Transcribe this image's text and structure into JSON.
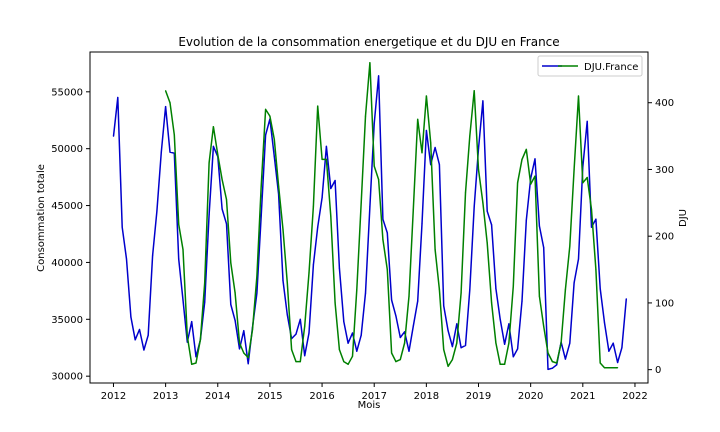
{
  "chart_data": {
    "type": "line",
    "title": "Evolution de la consommation energetique et du DJU en France",
    "xlabel": "Mois",
    "ylabel": "Consommation totale",
    "ylabel_right": "DJU",
    "legend": {
      "placement": "top-right",
      "entries": [
        "",
        "DJU.France"
      ]
    },
    "grid": false,
    "x_ticks": [
      "2012",
      "2013",
      "2014",
      "2015",
      "2016",
      "2017",
      "2018",
      "2019",
      "2020",
      "2021",
      "2022"
    ],
    "y_ticks": [
      "30000",
      "35000",
      "40000",
      "45000",
      "50000",
      "55000"
    ],
    "y2_ticks": [
      "0",
      "100",
      "200",
      "300",
      "400"
    ],
    "xlim": [
      2011.55,
      2022.25
    ],
    "ylim": [
      29400,
      58500
    ],
    "y2lim": [
      -20,
      476
    ],
    "series": [
      {
        "name": "",
        "axis": "left",
        "color": "#0000cc",
        "x_start": 2012.0,
        "x_step": 0.0833333,
        "values": [
          51100,
          54500,
          43100,
          40300,
          35200,
          33200,
          34100,
          32300,
          33600,
          40600,
          44500,
          49700,
          53700,
          49700,
          49600,
          40300,
          36700,
          33000,
          34800,
          31700,
          33200,
          36500,
          44200,
          50200,
          49300,
          44700,
          43400,
          36300,
          34900,
          32400,
          34000,
          31100,
          34300,
          37300,
          44100,
          51200,
          52600,
          49300,
          46000,
          38400,
          35400,
          33300,
          33700,
          35000,
          31800,
          33800,
          39800,
          43100,
          45700,
          50200,
          46500,
          47200,
          39500,
          34800,
          32900,
          33800,
          32200,
          33600,
          37300,
          44900,
          52200,
          56400,
          43800,
          42600,
          36700,
          35300,
          33400,
          33900,
          32200,
          34400,
          36600,
          43400,
          51600,
          48600,
          50100,
          48600,
          36200,
          34000,
          32600,
          34600,
          32500,
          32700,
          37600,
          44900,
          50000,
          54200,
          44500,
          43300,
          37700,
          35000,
          32800,
          34600,
          31700,
          32400,
          36600,
          43700,
          47400,
          49100,
          43200,
          41300,
          30600,
          30700,
          31000,
          33000,
          31500,
          32900,
          38200,
          40300,
          48400,
          52400,
          43100,
          43800,
          37700,
          34700,
          32200,
          32900,
          31200,
          32500,
          36800
        ]
      },
      {
        "name": "DJU.France",
        "axis": "right",
        "color": "#008000",
        "x_start": 2013.0,
        "x_step": 0.0833333,
        "values": [
          418,
          400,
          352,
          218,
          180,
          50,
          8,
          10,
          45,
          130,
          310,
          364,
          322,
          285,
          255,
          160,
          115,
          40,
          25,
          18,
          60,
          140,
          275,
          390,
          380,
          345,
          275,
          210,
          130,
          30,
          12,
          12,
          65,
          145,
          245,
          395,
          315,
          315,
          230,
          100,
          30,
          12,
          8,
          20,
          120,
          250,
          380,
          460,
          305,
          285,
          195,
          150,
          25,
          12,
          15,
          40,
          110,
          240,
          375,
          325,
          410,
          340,
          180,
          120,
          30,
          5,
          15,
          40,
          115,
          265,
          350,
          418,
          300,
          250,
          190,
          100,
          40,
          8,
          8,
          40,
          125,
          280,
          315,
          330,
          278,
          290,
          110,
          65,
          25,
          12,
          10,
          40,
          120,
          185,
          300,
          410,
          280,
          288,
          240,
          150,
          10,
          3,
          3,
          3,
          3
        ]
      }
    ]
  }
}
